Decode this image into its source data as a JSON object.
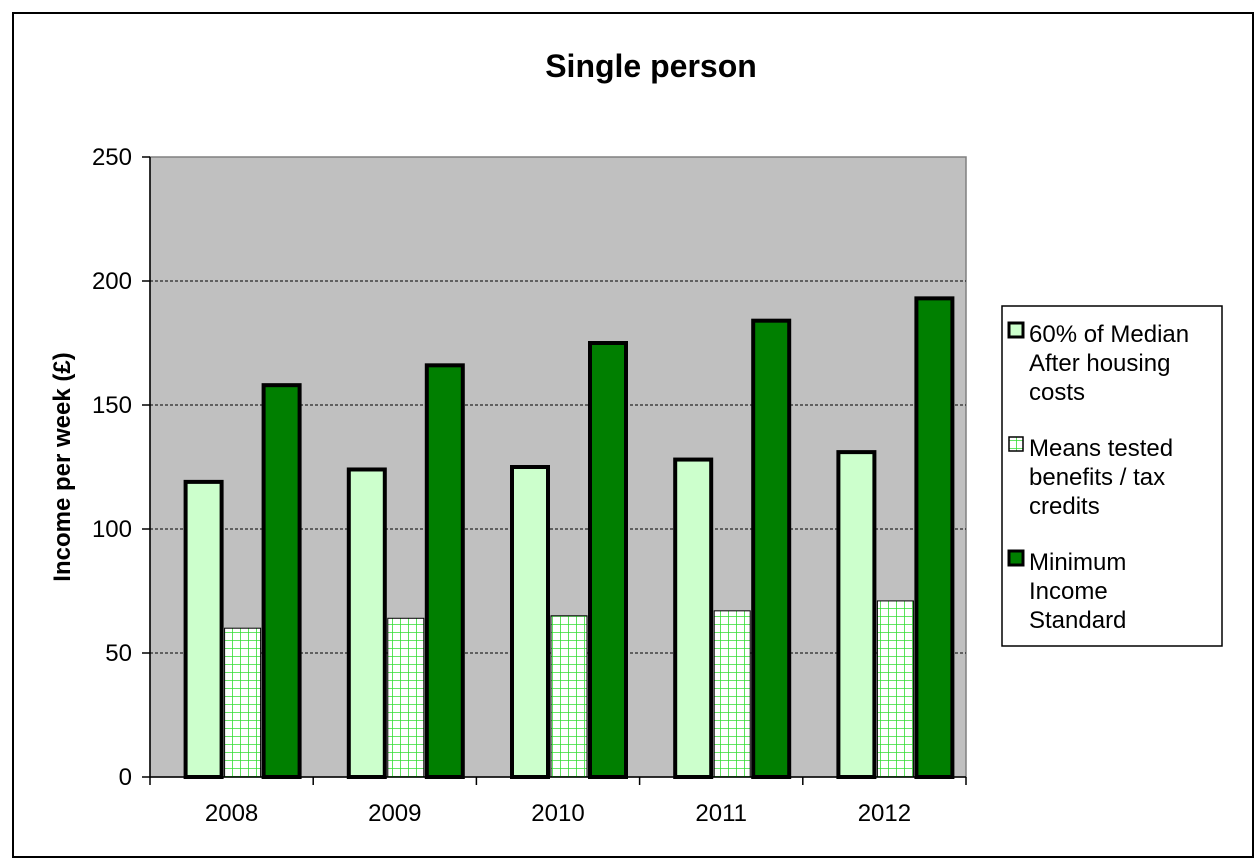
{
  "chart_data": {
    "type": "bar",
    "title": "Single person",
    "xlabel": "",
    "ylabel": "Income per week (£)",
    "ylim": [
      0,
      250
    ],
    "yticks": [
      0,
      50,
      100,
      150,
      200,
      250
    ],
    "grid": true,
    "legend_position": "right",
    "categories": [
      "2008",
      "2009",
      "2010",
      "2011",
      "2012"
    ],
    "series": [
      {
        "name": "60% of Median After housing costs",
        "legend_lines": [
          "60%  of Median",
          "After housing",
          "costs"
        ],
        "values": [
          119,
          124,
          125,
          128,
          131
        ],
        "color": "#ccffcc",
        "pattern": "solid"
      },
      {
        "name": "Means tested benefits / tax credits",
        "legend_lines": [
          "Means tested",
          "benefits / tax",
          "credits"
        ],
        "values": [
          60,
          64,
          65,
          67,
          71
        ],
        "color": "#00ff00",
        "pattern": "grid"
      },
      {
        "name": "Minimum Income Standard",
        "legend_lines": [
          "Minimum",
          "Income",
          "Standard"
        ],
        "values": [
          158,
          166,
          175,
          184,
          193
        ],
        "color": "#007f00",
        "pattern": "solid"
      }
    ],
    "plot_background": "#c0c0c0"
  }
}
